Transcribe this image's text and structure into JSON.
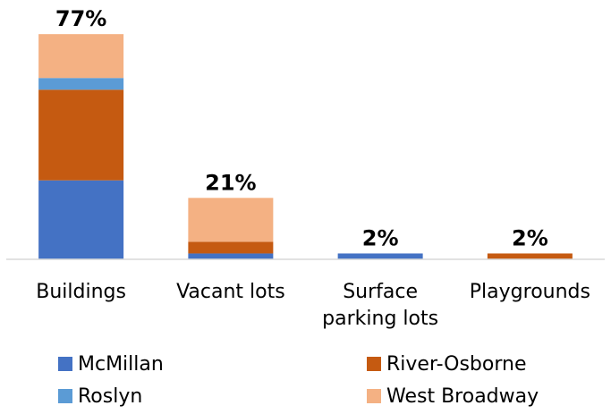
{
  "chart_data": {
    "type": "bar",
    "stacked": true,
    "categories": [
      "Buildings",
      "Vacant lots",
      "Surface parking lots",
      "Playgrounds"
    ],
    "series": [
      {
        "name": "McMillan",
        "color": "#4472c4",
        "values": [
          27,
          2,
          2,
          0
        ]
      },
      {
        "name": "River-Osborne",
        "color": "#c55a11",
        "values": [
          31,
          4,
          0,
          2
        ]
      },
      {
        "name": "Roslyn",
        "color": "#5b9bd5",
        "values": [
          4,
          0,
          0,
          0
        ]
      },
      {
        "name": "West Broadway",
        "color": "#f4b183",
        "values": [
          15,
          15,
          0,
          0
        ]
      }
    ],
    "totals": [
      77,
      21,
      2,
      2
    ],
    "total_labels": [
      "77%",
      "21%",
      "2%",
      "2%"
    ],
    "ylim": [
      0,
      85
    ]
  }
}
